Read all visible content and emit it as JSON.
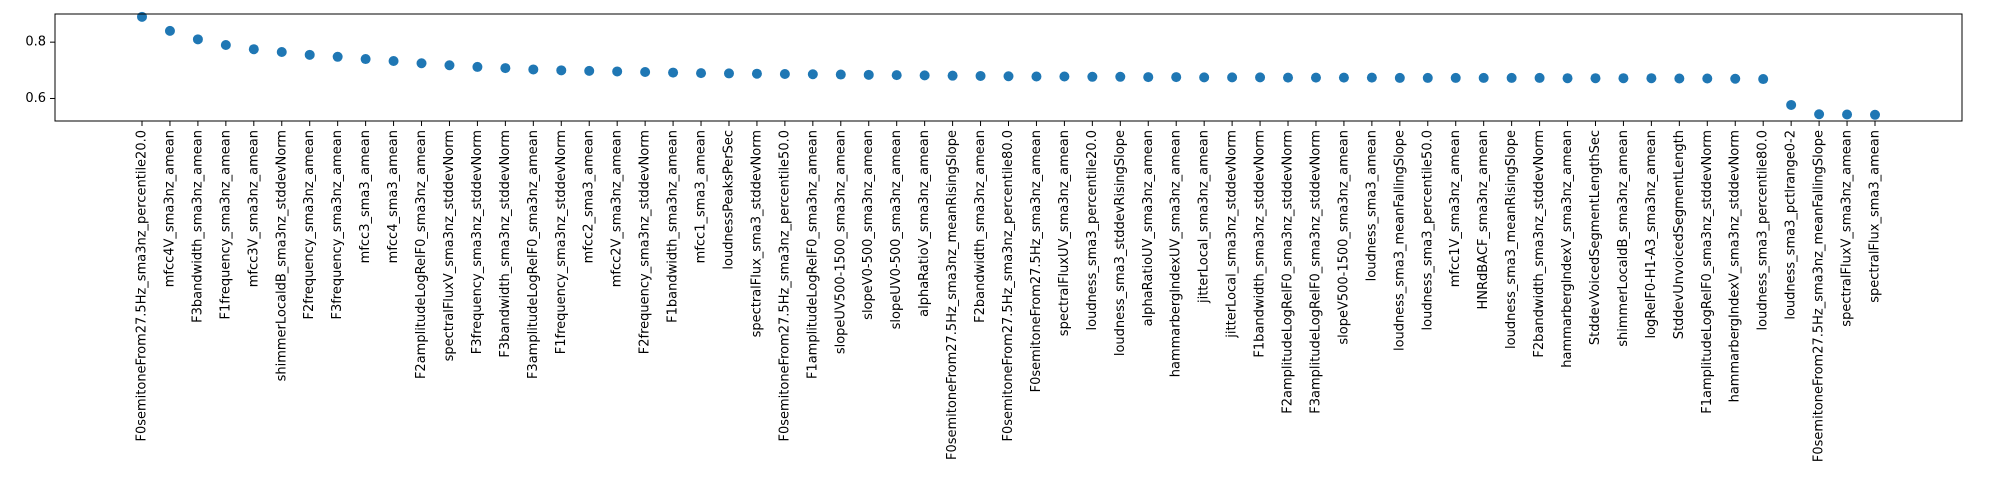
{
  "chart_data": {
    "type": "scatter",
    "title": "",
    "xlabel": "",
    "ylabel": "",
    "categories": [
      "F0semitoneFrom27.5Hz_sma3nz_percentile20.0",
      "mfcc4V_sma3nz_amean",
      "F3bandwidth_sma3nz_amean",
      "F1frequency_sma3nz_amean",
      "mfcc3V_sma3nz_amean",
      "shimmerLocaldB_sma3nz_stddevNorm",
      "F2frequency_sma3nz_amean",
      "F3frequency_sma3nz_amean",
      "mfcc3_sma3_amean",
      "mfcc4_sma3_amean",
      "F2amplitudeLogRelF0_sma3nz_amean",
      "spectralFluxV_sma3nz_stddevNorm",
      "F3frequency_sma3nz_stddevNorm",
      "F3bandwidth_sma3nz_stddevNorm",
      "F3amplitudeLogRelF0_sma3nz_amean",
      "F1frequency_sma3nz_stddevNorm",
      "mfcc2_sma3_amean",
      "mfcc2V_sma3nz_amean",
      "F2frequency_sma3nz_stddevNorm",
      "F1bandwidth_sma3nz_amean",
      "mfcc1_sma3_amean",
      "loudnessPeaksPerSec",
      "spectralFlux_sma3_stddevNorm",
      "F0semitoneFrom27.5Hz_sma3nz_percentile50.0",
      "F1amplitudeLogRelF0_sma3nz_amean",
      "slopeUV500-1500_sma3nz_amean",
      "slopeV0-500_sma3nz_amean",
      "slopeUV0-500_sma3nz_amean",
      "alphaRatioV_sma3nz_amean",
      "F0semitoneFrom27.5Hz_sma3nz_meanRisingSlope",
      "F2bandwidth_sma3nz_amean",
      "F0semitoneFrom27.5Hz_sma3nz_percentile80.0",
      "F0semitoneFrom27.5Hz_sma3nz_amean",
      "spectralFluxUV_sma3nz_amean",
      "loudness_sma3_percentile20.0",
      "loudness_sma3_stddevRisingSlope",
      "alphaRatioUV_sma3nz_amean",
      "hammarbergIndexUV_sma3nz_amean",
      "jitterLocal_sma3nz_amean",
      "jitterLocal_sma3nz_stddevNorm",
      "F1bandwidth_sma3nz_stddevNorm",
      "F2amplitudeLogRelF0_sma3nz_stddevNorm",
      "F3amplitudeLogRelF0_sma3nz_stddevNorm",
      "slopeV500-1500_sma3nz_amean",
      "loudness_sma3_amean",
      "loudness_sma3_meanFallingSlope",
      "loudness_sma3_percentile50.0",
      "mfcc1V_sma3nz_amean",
      "HNRdBACF_sma3nz_amean",
      "loudness_sma3_meanRisingSlope",
      "F2bandwidth_sma3nz_stddevNorm",
      "hammarbergIndexV_sma3nz_amean",
      "StddevVoicedSegmentLengthSec",
      "shimmerLocaldB_sma3nz_amean",
      "logRelF0-H1-A3_sma3nz_amean",
      "StddevUnvoicedSegmentLength",
      "F1amplitudeLogRelF0_sma3nz_stddevNorm",
      "hammarbergIndexV_sma3nz_stddevNorm",
      "loudness_sma3_percentile80.0",
      "loudness_sma3_pctlrange0-2",
      "F0semitoneFrom27.5Hz_sma3nz_meanFallingSlope",
      "spectralFluxV_sma3nz_amean",
      "spectralFlux_sma3_amean"
    ],
    "values": [
      0.89,
      0.84,
      0.81,
      0.79,
      0.775,
      0.765,
      0.755,
      0.748,
      0.74,
      0.733,
      0.725,
      0.718,
      0.712,
      0.708,
      0.703,
      0.7,
      0.698,
      0.696,
      0.694,
      0.692,
      0.69,
      0.689,
      0.688,
      0.687,
      0.686,
      0.685,
      0.684,
      0.683,
      0.682,
      0.681,
      0.68,
      0.679,
      0.678,
      0.678,
      0.677,
      0.677,
      0.676,
      0.676,
      0.675,
      0.675,
      0.675,
      0.674,
      0.674,
      0.674,
      0.674,
      0.673,
      0.673,
      0.673,
      0.673,
      0.673,
      0.673,
      0.672,
      0.672,
      0.672,
      0.672,
      0.671,
      0.671,
      0.67,
      0.669,
      0.577,
      0.544,
      0.543,
      0.542
    ],
    "ylim": [
      0.52,
      0.9
    ],
    "yticks": [
      "0.6",
      "0.8"
    ],
    "grid": false,
    "marker_color": "#1f77b4"
  }
}
